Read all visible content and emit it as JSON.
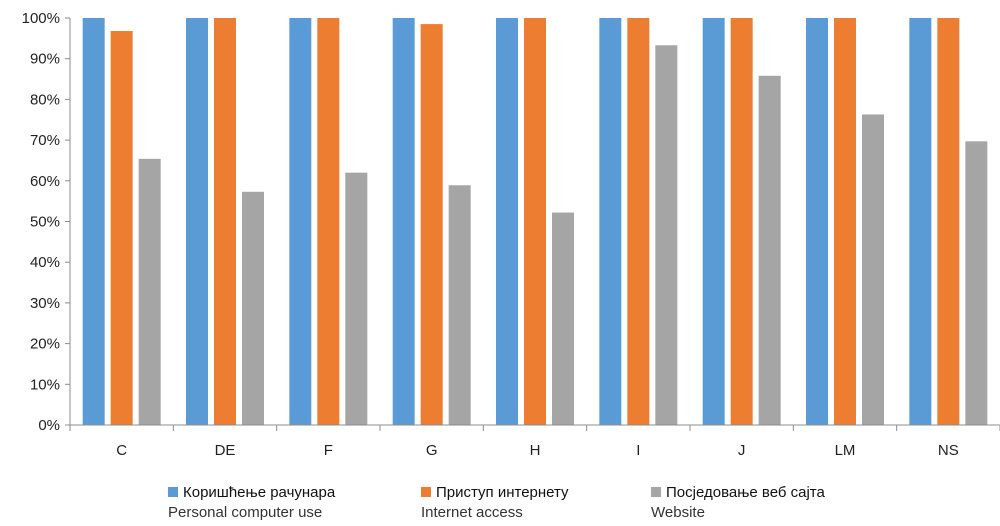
{
  "chart_data": {
    "type": "bar",
    "categories": [
      "C",
      "DE",
      "F",
      "G",
      "H",
      "I",
      "J",
      "LM",
      "NS"
    ],
    "series": [
      {
        "name": "Коришћење рачунара",
        "name_en": "Personal computer use",
        "color": "#5B9BD5",
        "values": [
          100,
          100,
          100,
          100,
          100,
          100,
          100,
          100,
          100
        ]
      },
      {
        "name": "Приступ интернету",
        "name_en": "Internet access",
        "color": "#ED7D31",
        "values": [
          96.8,
          100,
          100,
          98.5,
          100,
          100,
          100,
          100,
          100
        ]
      },
      {
        "name": "Посједовање веб сајта",
        "name_en": "Website",
        "color": "#A5A5A5",
        "values": [
          65.4,
          57.3,
          62,
          58.9,
          52.2,
          93.3,
          85.8,
          76.3,
          69.7
        ]
      }
    ],
    "yticks": [
      "0%",
      "10%",
      "20%",
      "30%",
      "40%",
      "50%",
      "60%",
      "70%",
      "80%",
      "90%",
      "100%"
    ],
    "ylim": [
      0,
      100
    ],
    "grid": false,
    "legend_position": "bottom"
  }
}
